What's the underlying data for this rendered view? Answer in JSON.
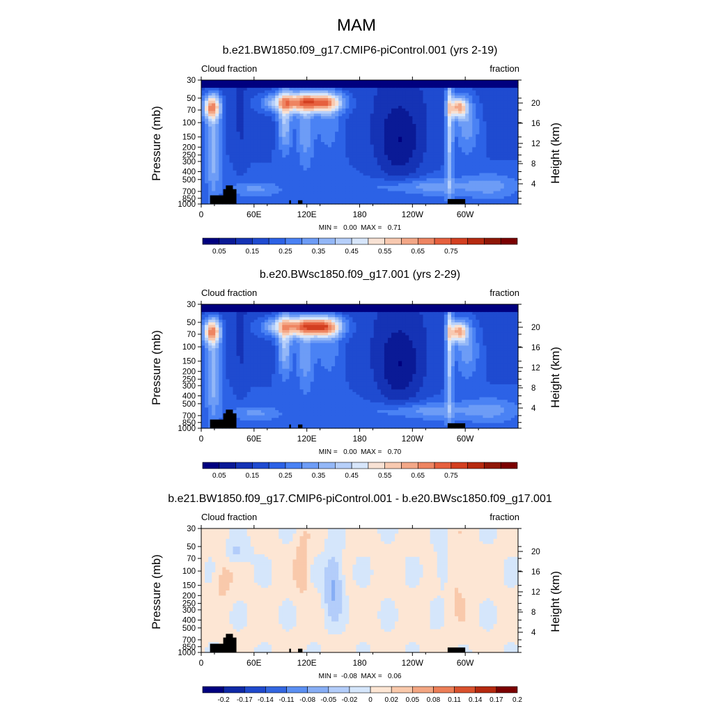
{
  "figure": {
    "title": "MAM"
  },
  "colors": {
    "abs_palette": [
      "#00007f",
      "#0a1a96",
      "#1533b5",
      "#1f4bd0",
      "#2c62e6",
      "#4a82f4",
      "#6d9cf6",
      "#93b7f7",
      "#b6cffa",
      "#d7e6fb",
      "#f8e2d4",
      "#f8c9b0",
      "#f3a787",
      "#ee8562",
      "#e6603e",
      "#d33f20",
      "#b62a10",
      "#8f1706",
      "#7b0000"
    ],
    "diff_palette": [
      "#00007f",
      "#0f29a6",
      "#1f49cc",
      "#3366e0",
      "#5b8ff2",
      "#87aef5",
      "#b3cdfa",
      "#d5e6fb",
      "#fde6d4",
      "#f9c9ab",
      "#f3a682",
      "#ec7e57",
      "#d9512d",
      "#b5290f",
      "#7b0000"
    ],
    "land": "#000000"
  },
  "chart_data": [
    {
      "type": "heatmap",
      "title": "b.e21.BW1850.f09_g17.CMIP6-piControl.001 (yrs 2-19)",
      "left_label": "Cloud fraction",
      "right_label": "fraction",
      "ylabel": "Pressure (mb)",
      "ylabel_right": "Height (km)",
      "x_ticks": [
        "0",
        "60E",
        "120E",
        "180",
        "120W",
        "60W"
      ],
      "y_ticks": [
        "30",
        "50",
        "70",
        "100",
        "150",
        "200",
        "250",
        "300",
        "400",
        "500",
        "700",
        "850",
        "1000"
      ],
      "y_ticks_right": [
        "20",
        "16",
        "12",
        "8",
        "4"
      ],
      "xlim": [
        0,
        360
      ],
      "ylim": [
        1000,
        30
      ],
      "stats": "MIN =   0.00  MAX =   0.71",
      "colorbar_labels": [
        "0.05",
        "0.15",
        "0.25",
        "0.35",
        "0.45",
        "0.55",
        "0.65",
        "0.75"
      ],
      "colorbar_levels": [
        0.05,
        0.1,
        0.15,
        0.2,
        0.25,
        0.3,
        0.35,
        0.4,
        0.45,
        0.5,
        0.55,
        0.6,
        0.65,
        0.7,
        0.75
      ]
    },
    {
      "type": "heatmap",
      "title": "b.e20.BWsc1850.f09_g17.001 (yrs 2-29)",
      "left_label": "Cloud fraction",
      "right_label": "fraction",
      "ylabel": "Pressure (mb)",
      "ylabel_right": "Height (km)",
      "x_ticks": [
        "0",
        "60E",
        "120E",
        "180",
        "120W",
        "60W"
      ],
      "y_ticks": [
        "30",
        "50",
        "70",
        "100",
        "150",
        "200",
        "250",
        "300",
        "400",
        "500",
        "700",
        "850",
        "1000"
      ],
      "y_ticks_right": [
        "20",
        "16",
        "12",
        "8",
        "4"
      ],
      "xlim": [
        0,
        360
      ],
      "ylim": [
        1000,
        30
      ],
      "stats": "MIN =   0.00  MAX =   0.70",
      "colorbar_labels": [
        "0.05",
        "0.15",
        "0.25",
        "0.35",
        "0.45",
        "0.55",
        "0.65",
        "0.75"
      ],
      "colorbar_levels": [
        0.05,
        0.1,
        0.15,
        0.2,
        0.25,
        0.3,
        0.35,
        0.4,
        0.45,
        0.5,
        0.55,
        0.6,
        0.65,
        0.7,
        0.75
      ]
    },
    {
      "type": "heatmap",
      "title": "b.e21.BW1850.f09_g17.CMIP6-piControl.001 - b.e20.BWsc1850.f09_g17.001",
      "left_label": "Cloud fraction",
      "right_label": "fraction",
      "ylabel": "Pressure (mb)",
      "ylabel_right": "Height (km)",
      "x_ticks": [
        "0",
        "60E",
        "120E",
        "180",
        "120W",
        "60W"
      ],
      "y_ticks": [
        "30",
        "50",
        "70",
        "100",
        "150",
        "200",
        "250",
        "300",
        "400",
        "500",
        "700",
        "850",
        "1000"
      ],
      "y_ticks_right": [
        "20",
        "16",
        "12",
        "8",
        "4"
      ],
      "xlim": [
        0,
        360
      ],
      "ylim": [
        1000,
        30
      ],
      "stats": "MIN =  -0.08  MAX =   0.06",
      "colorbar_labels": [
        "-0.2",
        "-0.17",
        "-0.14",
        "-0.11",
        "-0.08",
        "-0.05",
        "-0.02",
        "0",
        "0.02",
        "0.05",
        "0.08",
        "0.11",
        "0.14",
        "0.17",
        "0.2"
      ],
      "colorbar_levels": [
        -0.2,
        -0.17,
        -0.14,
        -0.11,
        -0.08,
        -0.05,
        -0.02,
        0,
        0.02,
        0.05,
        0.08,
        0.11,
        0.14,
        0.17,
        0.2
      ]
    }
  ]
}
